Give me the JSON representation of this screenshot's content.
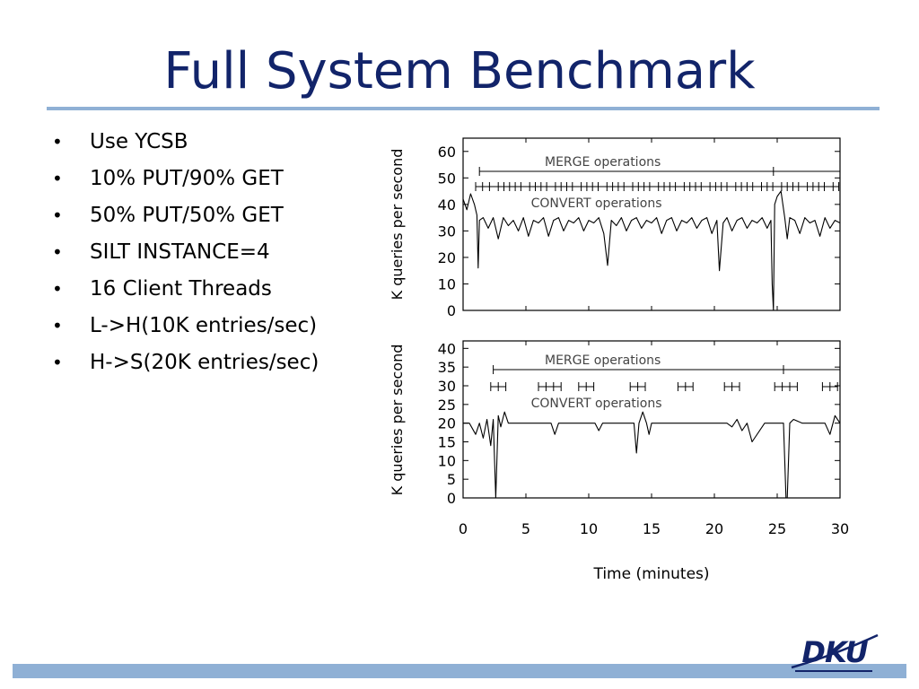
{
  "slide": {
    "title": "Full System Benchmark",
    "bullets": [
      "Use YCSB",
      "10% PUT/90% GET",
      "50% PUT/50% GET",
      "SILT INSTANCE=4",
      "16 Client Threads",
      "L->H(10K entries/sec)",
      "H->S(20K entries/sec)"
    ],
    "bullet_glyph": "•",
    "logo_text": "DKU"
  },
  "colors": {
    "title": "#12246a",
    "rule": "#8fb0d5",
    "logo": "#12246a"
  },
  "chart_data": [
    {
      "type": "line",
      "ylabel": "K queries per second",
      "xlim": [
        0,
        30
      ],
      "ylim": [
        0,
        65
      ],
      "yticks": [
        0,
        10,
        20,
        30,
        40,
        50,
        60
      ],
      "grid": false,
      "annotations": [
        "MERGE operations",
        "CONVERT operations"
      ],
      "merge_operations": [
        [
          1.3,
          24.7
        ],
        [
          24.7,
          30
        ]
      ],
      "convert_operations": [
        1.0,
        1.55,
        2.1,
        2.8,
        3.25,
        3.7,
        4.15,
        4.6,
        5.3,
        5.75,
        6.2,
        6.65,
        7.35,
        7.8,
        8.25,
        8.7,
        9.4,
        9.85,
        10.3,
        10.75,
        11.45,
        11.9,
        12.35,
        12.8,
        13.5,
        13.95,
        14.4,
        14.85,
        15.55,
        16.0,
        16.45,
        16.9,
        17.6,
        18.05,
        18.5,
        18.95,
        19.65,
        20.1,
        20.55,
        21.0,
        21.7,
        22.15,
        22.6,
        23.05,
        23.75,
        24.2,
        24.65,
        25.35,
        25.8,
        26.25,
        26.7,
        27.4,
        27.85,
        28.3,
        28.75,
        29.45,
        29.9
      ],
      "series": [
        {
          "x": [
            0,
            0.3,
            0.6,
            0.9,
            1.1,
            1.2,
            1.3,
            1.6,
            2.0,
            2.4,
            2.8,
            3.2,
            3.6,
            4.0,
            4.4,
            4.8,
            5.2,
            5.6,
            6.0,
            6.4,
            6.8,
            7.2,
            7.6,
            8.0,
            8.4,
            8.8,
            9.2,
            9.6,
            10.0,
            10.4,
            10.8,
            11.2,
            11.5,
            11.8,
            12.2,
            12.6,
            13.0,
            13.4,
            13.8,
            14.2,
            14.6,
            15.0,
            15.4,
            15.8,
            16.2,
            16.6,
            17.0,
            17.4,
            17.8,
            18.2,
            18.6,
            19.0,
            19.4,
            19.8,
            20.2,
            20.4,
            20.7,
            21.0,
            21.4,
            21.8,
            22.2,
            22.6,
            23.0,
            23.4,
            23.8,
            24.2,
            24.5,
            24.6,
            24.7,
            24.8,
            25.0,
            25.3,
            25.6,
            25.8,
            26.0,
            26.4,
            26.8,
            27.2,
            27.6,
            28.0,
            28.4,
            28.8,
            29.2,
            29.6,
            30.0
          ],
          "values": [
            42,
            38,
            44,
            40,
            36,
            16,
            34,
            35,
            31,
            35,
            27,
            35,
            32,
            34,
            30,
            35,
            28,
            34,
            33,
            35,
            28,
            34,
            35,
            30,
            34,
            33,
            35,
            30,
            34,
            33,
            35,
            29,
            17,
            34,
            32,
            35,
            30,
            34,
            35,
            31,
            34,
            33,
            35,
            29,
            34,
            35,
            30,
            34,
            33,
            35,
            31,
            34,
            35,
            29,
            34,
            15,
            33,
            35,
            30,
            34,
            35,
            31,
            34,
            33,
            35,
            31,
            34,
            10,
            0,
            40,
            43,
            45,
            35,
            27,
            35,
            34,
            29,
            35,
            33,
            34,
            28,
            35,
            31,
            34,
            33
          ]
        }
      ]
    },
    {
      "type": "line",
      "ylabel": "K queries per second",
      "xlabel": "Time (minutes)",
      "xlim": [
        0,
        30
      ],
      "ylim": [
        0,
        42
      ],
      "xticks": [
        0,
        5,
        10,
        15,
        20,
        25,
        30
      ],
      "yticks": [
        0,
        5,
        10,
        15,
        20,
        25,
        30,
        35,
        40
      ],
      "grid": false,
      "annotations": [
        "MERGE operations",
        "CONVERT operations"
      ],
      "merge_operations": [
        [
          2.4,
          25.5
        ],
        [
          25.5,
          30
        ]
      ],
      "convert_operations": [
        2.2,
        2.8,
        3.4,
        6.0,
        6.6,
        7.2,
        7.8,
        9.2,
        9.8,
        10.4,
        13.3,
        13.9,
        14.5,
        17.1,
        17.7,
        18.3,
        20.8,
        21.4,
        22.0,
        24.8,
        25.4,
        26.0,
        26.6,
        28.6,
        29.2,
        29.8
      ],
      "series": [
        {
          "x": [
            0,
            0.5,
            1.0,
            1.3,
            1.6,
            1.9,
            2.2,
            2.4,
            2.6,
            2.8,
            3.0,
            3.3,
            3.6,
            4.0,
            5.0,
            6.0,
            7.0,
            7.3,
            7.6,
            8.5,
            9.5,
            10.5,
            10.8,
            11.1,
            12.0,
            13.0,
            13.6,
            13.8,
            14.0,
            14.3,
            14.6,
            14.8,
            15.0,
            16.0,
            17.0,
            18.0,
            19.0,
            20.0,
            21.0,
            21.4,
            21.8,
            22.2,
            22.6,
            23.0,
            24.0,
            25.0,
            25.5,
            25.7,
            25.8,
            26.0,
            26.3,
            27.0,
            28.0,
            28.8,
            29.2,
            29.6,
            30.0
          ],
          "values": [
            20,
            20,
            17,
            20,
            16,
            21,
            14,
            21,
            0,
            22,
            19,
            23,
            20,
            20,
            20,
            20,
            20,
            17,
            20,
            20,
            20,
            20,
            18,
            20,
            20,
            20,
            20,
            12,
            20,
            23,
            20,
            17,
            20,
            20,
            20,
            20,
            20,
            20,
            20,
            19,
            21,
            18,
            20,
            15,
            20,
            20,
            20,
            0,
            0,
            20,
            21,
            20,
            20,
            20,
            17,
            22,
            20
          ]
        }
      ]
    }
  ]
}
